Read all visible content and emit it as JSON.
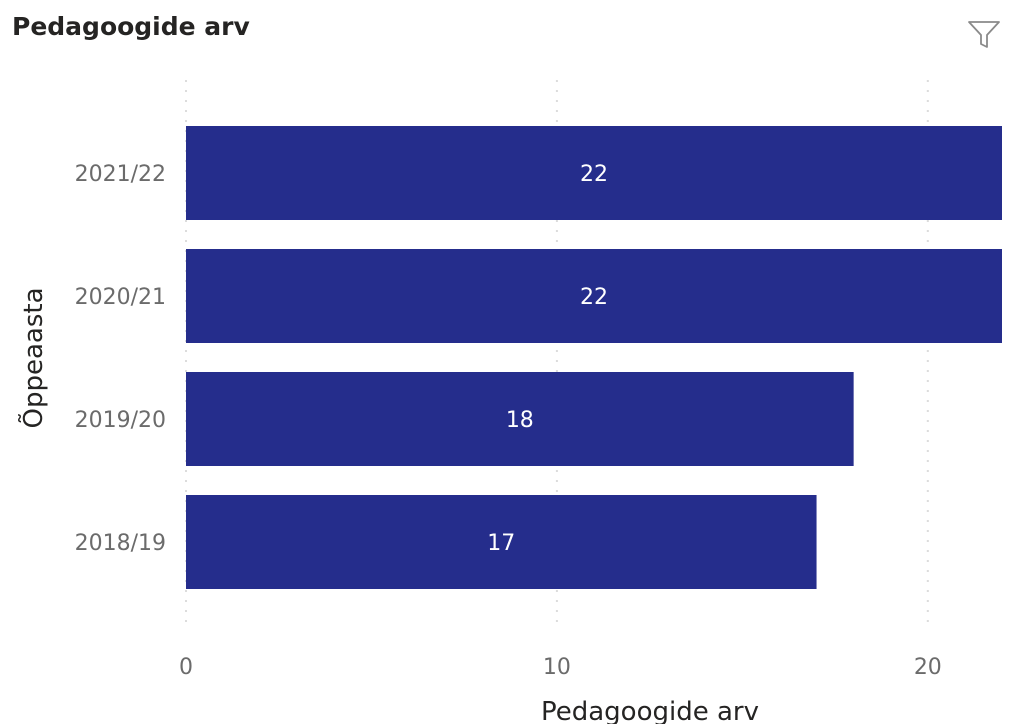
{
  "header": {
    "title": "Pedagoogide arv",
    "filter_icon": "filter-icon"
  },
  "colors": {
    "bar": "#252d8c",
    "grid": "#dcdcdc"
  },
  "chart_data": {
    "type": "bar",
    "orientation": "horizontal",
    "title": "Pedagoogide arv",
    "xlabel": "Pedagoogide arv",
    "ylabel": "Õppeaasta",
    "categories": [
      "2021/22",
      "2020/21",
      "2019/20",
      "2018/19"
    ],
    "values": [
      22,
      22,
      18,
      17
    ],
    "xlim": [
      0,
      22
    ],
    "xticks": [
      0,
      10,
      20
    ],
    "xtick_labels": [
      "0",
      "10",
      "20"
    ],
    "grid": true,
    "data_labels": true
  }
}
